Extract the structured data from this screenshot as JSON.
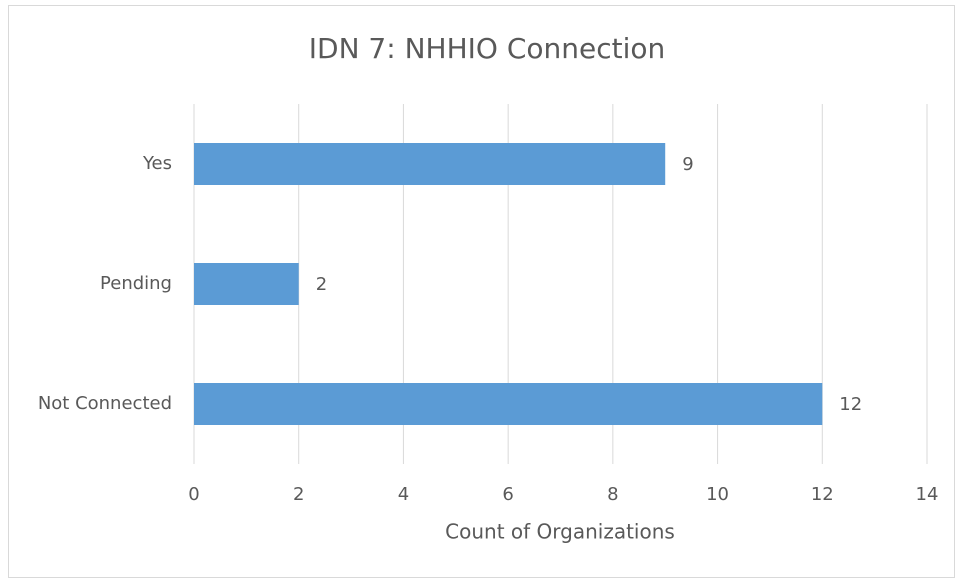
{
  "chart_data": {
    "type": "bar",
    "orientation": "horizontal",
    "title": "IDN 7: NHHIO Connection",
    "x_label": "Count of Organizations",
    "categories": [
      "Yes",
      "Pending",
      "Not Connected"
    ],
    "values": [
      9,
      2,
      12
    ],
    "color": "#5b9bd5",
    "xlim": [
      0,
      14
    ],
    "xticks": [
      0,
      2,
      4,
      6,
      8,
      10,
      12,
      14
    ],
    "grid": true
  }
}
